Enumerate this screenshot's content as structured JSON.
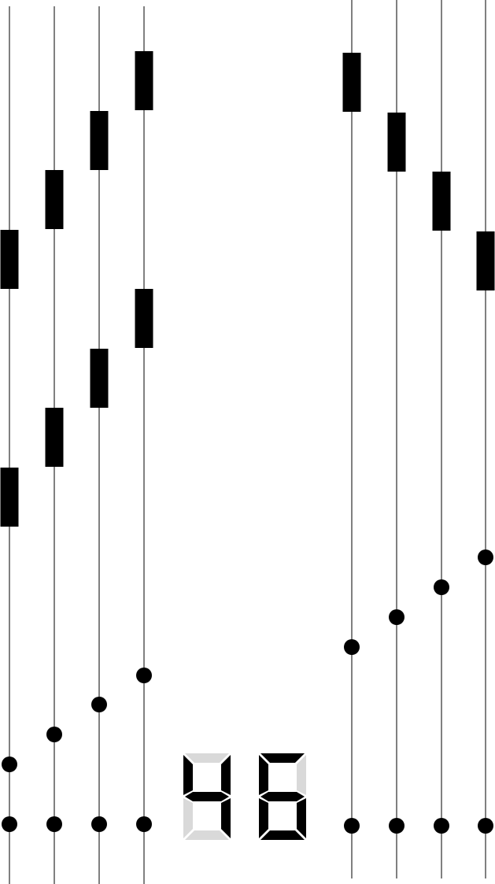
{
  "game": {
    "score": 46,
    "colors": {
      "background": "#ffffff",
      "line": "#000000",
      "ink": "#000000",
      "segment_on": "#000000",
      "segment_off": "#d9d9d9"
    },
    "left_group": {
      "rods": [
        {
          "upper_bead": true,
          "lower_bead": true,
          "counter_dot": true,
          "base_dot": true
        },
        {
          "upper_bead": true,
          "lower_bead": true,
          "counter_dot": true,
          "base_dot": true
        },
        {
          "upper_bead": true,
          "lower_bead": true,
          "counter_dot": true,
          "base_dot": true
        },
        {
          "upper_bead": true,
          "lower_bead": true,
          "counter_dot": true,
          "base_dot": true
        }
      ]
    },
    "right_group": {
      "rods": [
        {
          "upper_bead": true,
          "counter_dot": true,
          "base_dot": true
        },
        {
          "upper_bead": true,
          "counter_dot": true,
          "base_dot": true
        },
        {
          "upper_bead": true,
          "counter_dot": true,
          "base_dot": true
        },
        {
          "upper_bead": true,
          "counter_dot": true,
          "base_dot": true
        }
      ]
    }
  }
}
